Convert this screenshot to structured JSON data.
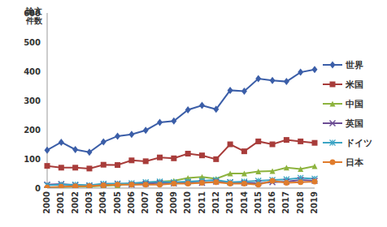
{
  "chart_data": {
    "type": "line",
    "y_label": "論文件数",
    "categories": [
      "2000",
      "2001",
      "2002",
      "2003",
      "2004",
      "2005",
      "2006",
      "2007",
      "2008",
      "2009",
      "2010",
      "2011",
      "2012",
      "2013",
      "2014",
      "2015",
      "2016",
      "2017",
      "2018",
      "2019"
    ],
    "series": [
      {
        "name": "世界",
        "color": "#3b5ea8",
        "marker": "diamond",
        "values": [
          130,
          157,
          132,
          123,
          158,
          178,
          184,
          198,
          225,
          230,
          268,
          283,
          270,
          335,
          332,
          375,
          369,
          365,
          397,
          406
        ]
      },
      {
        "name": "米国",
        "color": "#a83c3a",
        "marker": "square",
        "values": [
          76,
          70,
          70,
          67,
          80,
          79,
          95,
          92,
          105,
          102,
          118,
          112,
          99,
          150,
          126,
          160,
          150,
          165,
          160,
          155
        ]
      },
      {
        "name": "中国",
        "color": "#8db33e",
        "marker": "triangle",
        "values": [
          2,
          3,
          5,
          5,
          8,
          10,
          15,
          18,
          22,
          25,
          35,
          38,
          32,
          50,
          50,
          57,
          58,
          70,
          65,
          75
        ]
      },
      {
        "name": "英国",
        "color": "#6b4c94",
        "marker": "x",
        "values": [
          12,
          14,
          10,
          8,
          12,
          15,
          12,
          15,
          18,
          16,
          20,
          18,
          22,
          20,
          18,
          17,
          20,
          22,
          28,
          25
        ]
      },
      {
        "name": "ドイツ",
        "color": "#3ba4c4",
        "marker": "star",
        "values": [
          10,
          12,
          12,
          10,
          15,
          15,
          17,
          20,
          22,
          20,
          22,
          25,
          28,
          20,
          22,
          25,
          28,
          30,
          35,
          32
        ]
      },
      {
        "name": "日本",
        "color": "#e07c2c",
        "marker": "circle",
        "values": [
          2,
          5,
          6,
          7,
          10,
          12,
          12,
          12,
          12,
          15,
          15,
          18,
          20,
          15,
          15,
          12,
          25,
          18,
          20,
          22
        ]
      }
    ],
    "ylim": [
      0,
      600
    ],
    "yticks": [
      0,
      100,
      200,
      300,
      400,
      500,
      600
    ],
    "grid": false,
    "legend": "right"
  }
}
